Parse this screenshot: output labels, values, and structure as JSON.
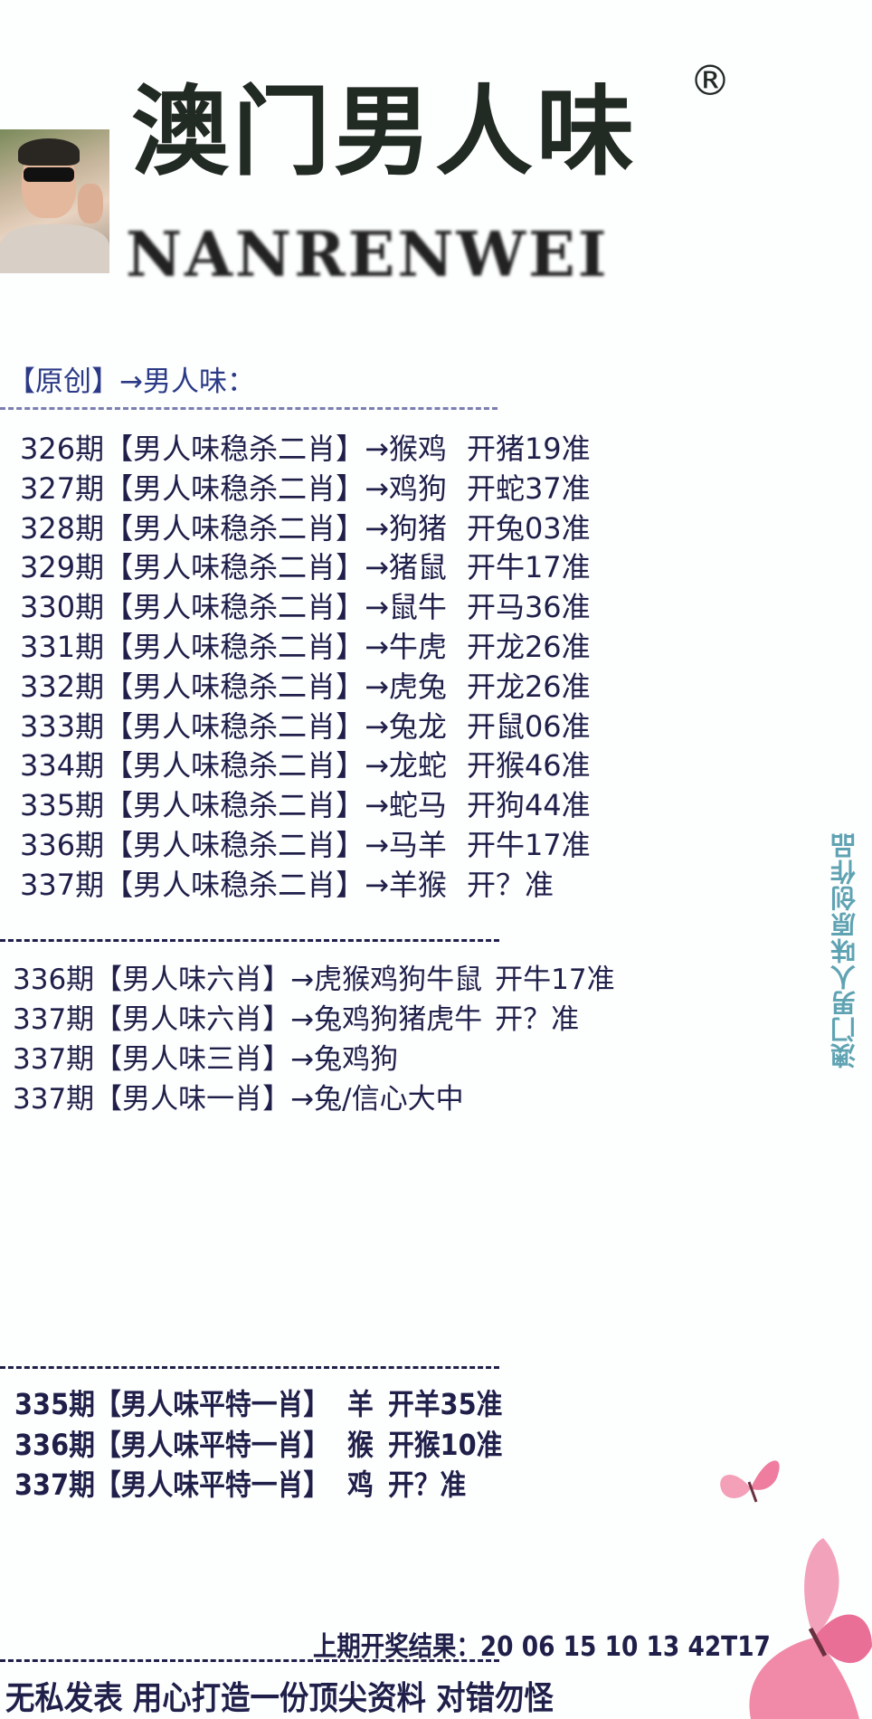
{
  "header": {
    "title": "澳门男人味",
    "registered_mark": "®",
    "brand_latin": "NANRENWEI",
    "intro": "【原创】→男人味："
  },
  "two_xiao": {
    "label": "【男人味稳杀二肖】",
    "rows": [
      {
        "period": "326期",
        "pick": "→猴鸡",
        "result": "开猪19准"
      },
      {
        "period": "327期",
        "pick": "→鸡狗",
        "result": "开蛇37准"
      },
      {
        "period": "328期",
        "pick": "→狗猪",
        "result": "开兔03准"
      },
      {
        "period": "329期",
        "pick": "→猪鼠",
        "result": "开牛17准"
      },
      {
        "period": "330期",
        "pick": "→鼠牛",
        "result": "开马36准"
      },
      {
        "period": "331期",
        "pick": "→牛虎",
        "result": "开龙26准"
      },
      {
        "period": "332期",
        "pick": "→虎兔",
        "result": "开龙26准"
      },
      {
        "period": "333期",
        "pick": "→兔龙",
        "result": "开鼠06准"
      },
      {
        "period": "334期",
        "pick": "→龙蛇",
        "result": "开猴46准"
      },
      {
        "period": "335期",
        "pick": "→蛇马",
        "result": "开狗44准"
      },
      {
        "period": "336期",
        "pick": "→马羊",
        "result": "开牛17准"
      },
      {
        "period": "337期",
        "pick": "→羊猴",
        "result": "开？准"
      }
    ]
  },
  "multi_xiao": [
    {
      "period": "336期",
      "label": "【男人味六肖】",
      "pick": "→虎猴鸡狗牛鼠",
      "result": "开牛17准"
    },
    {
      "period": "337期",
      "label": "【男人味六肖】",
      "pick": "→兔鸡狗猪虎牛",
      "result": "开？准"
    },
    {
      "period": "337期",
      "label": "【男人味三肖】",
      "pick": "→兔鸡狗",
      "result": ""
    },
    {
      "period": "337期",
      "label": "【男人味一肖】",
      "pick": "→兔/信心大中",
      "result": ""
    }
  ],
  "ping_te": [
    {
      "period": "335期",
      "label": "【男人味平特一肖】",
      "pick": "羊",
      "result": "开羊35准"
    },
    {
      "period": "336期",
      "label": "【男人味平特一肖】",
      "pick": "猴",
      "result": "开猴10准"
    },
    {
      "period": "337期",
      "label": "【男人味平特一肖】",
      "pick": "鸡",
      "result": "开？准"
    }
  ],
  "last_draw": "上期开奖结果：20 06 15 10 13 42T17",
  "footer": "无私发表 用心打造一份顶尖资料 对错勿怪",
  "side_watermark": "澳门男人味原创作品",
  "colors": {
    "text": "#1f1f4a",
    "title": "#222a24",
    "intro": "#2b3a86",
    "watermark": "#5fa3b3",
    "butterfly": "#f08aa8"
  }
}
